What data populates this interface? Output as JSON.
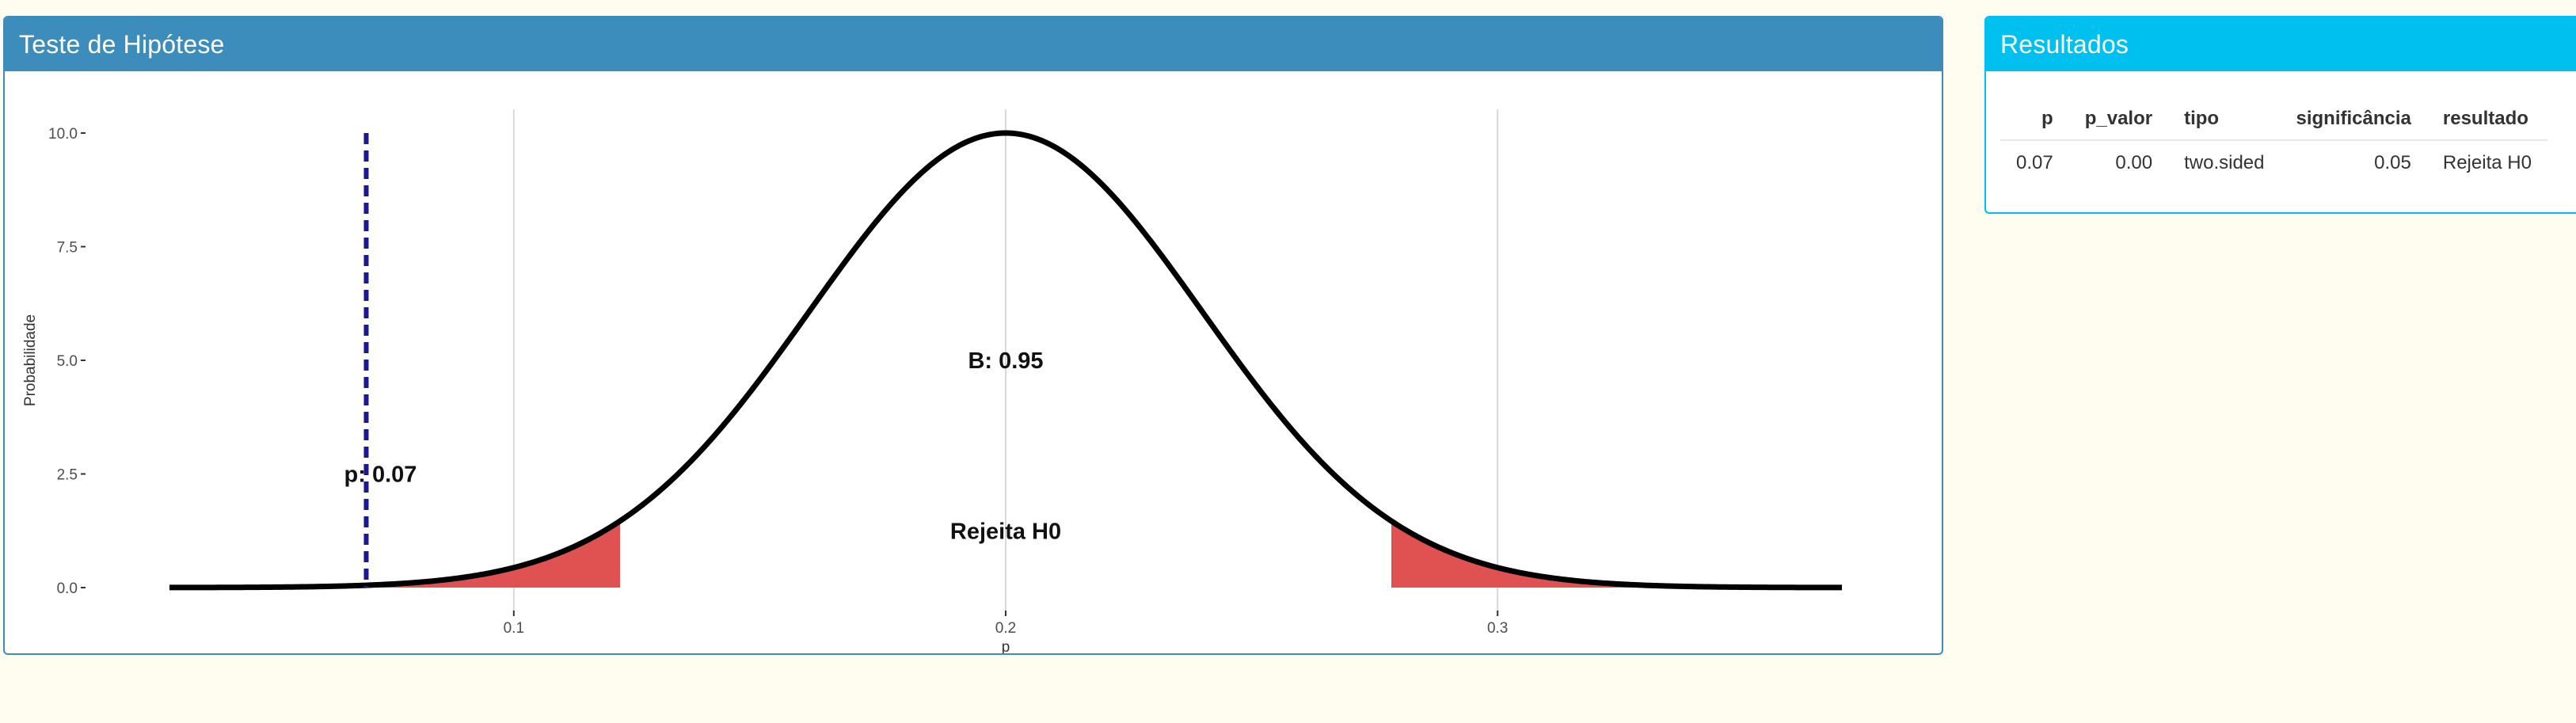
{
  "chart_panel": {
    "title": "Teste de Hipótese",
    "header_color": "#3c8dbc"
  },
  "results_panel": {
    "title": "Resultados",
    "header_color": "#00c0ef",
    "columns": [
      "p",
      "p_valor",
      "tipo",
      "significância",
      "resultado"
    ],
    "rows": [
      [
        "0.07",
        "0.00",
        "two.sided",
        "0.05",
        "Rejeita H0"
      ]
    ]
  },
  "chart_data": {
    "type": "area",
    "title": "",
    "xlabel": "p",
    "ylabel": "Probabilidade",
    "xlim": [
      0.03,
      0.37
    ],
    "ylim": [
      0,
      10
    ],
    "x_ticks": [
      0.1,
      0.2,
      0.3
    ],
    "x_tick_labels": [
      "0.1",
      "0.2",
      "0.3"
    ],
    "y_ticks": [
      0,
      2.5,
      5,
      7.5,
      10
    ],
    "y_tick_labels": [
      "0.0",
      "2.5",
      "5.0",
      "7.5",
      "10.0"
    ],
    "grid": "vertical",
    "curve": {
      "distribution": "normal",
      "mean": 0.2,
      "sd": 0.04,
      "x_range": [
        0.03,
        0.37
      ],
      "peak": 10,
      "color": "#000000"
    },
    "rejection_regions": [
      {
        "from": 0.03,
        "to": 0.1216,
        "color": "#e05252"
      },
      {
        "from": 0.2784,
        "to": 0.37,
        "color": "#e05252"
      }
    ],
    "observed": {
      "x": 0.07,
      "label": "p: 0.07",
      "color": "#1a1a8c"
    },
    "annotations": [
      {
        "text": "B: 0.95",
        "x": 0.2,
        "y": 5.0
      },
      {
        "text": "Rejeita H0",
        "x": 0.2,
        "y": 1.25
      }
    ]
  }
}
